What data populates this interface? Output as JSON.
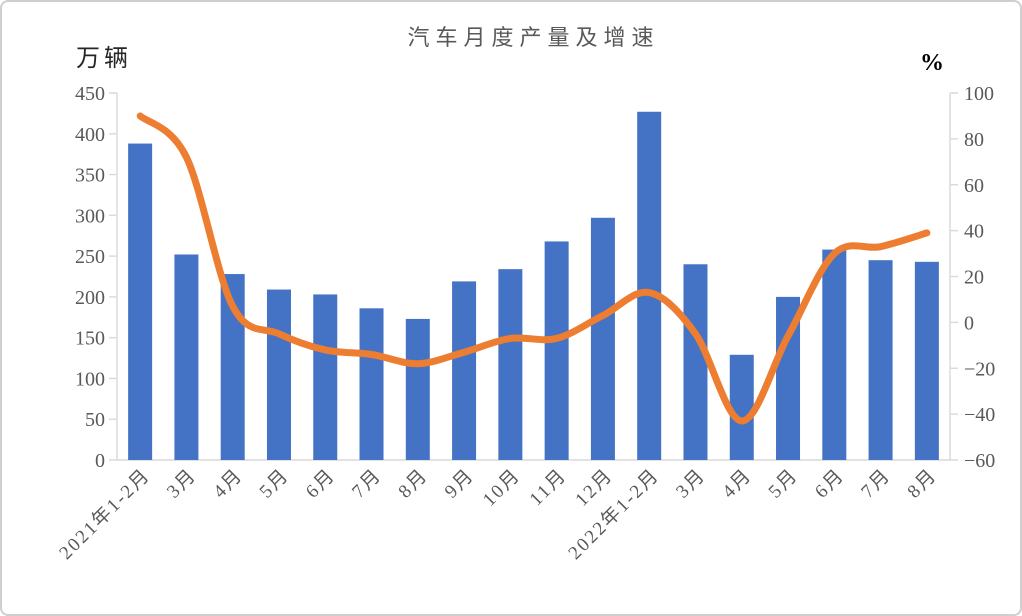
{
  "window": {
    "background": "#ffffff",
    "border_color": "#cfcfcf"
  },
  "chart_data": {
    "type": "bar",
    "subtype": "bar+line combo, dual axis",
    "title": "汽车月度产量及增速",
    "grid": false,
    "legend_position": "none",
    "categories": [
      "2021年1-2月",
      "3月",
      "4月",
      "5月",
      "6月",
      "7月",
      "8月",
      "9月",
      "10月",
      "11月",
      "12月",
      "2022年1-2月",
      "3月",
      "4月",
      "5月",
      "6月",
      "7月",
      "8月"
    ],
    "left_axis": {
      "label": "万辆",
      "min": 0,
      "max": 450,
      "step": 50,
      "tick_labels": [
        "450",
        "400",
        "350",
        "300",
        "250",
        "200",
        "150",
        "100",
        "50",
        "0"
      ]
    },
    "right_axis": {
      "label": "%",
      "min": -60,
      "max": 100,
      "step": 20,
      "tick_labels": [
        "100",
        "80",
        "60",
        "40",
        "20",
        "0",
        "−20",
        "−40",
        "−60"
      ]
    },
    "series": [
      {
        "name": "月度产量",
        "type": "bar",
        "axis": "left",
        "color": "#4472C4",
        "values": [
          388,
          252,
          228,
          209,
          203,
          186,
          173,
          219,
          234,
          268,
          297,
          427,
          240,
          129,
          200,
          258,
          245,
          243
        ]
      },
      {
        "name": "增速",
        "type": "line",
        "axis": "right",
        "color": "#ED7D31",
        "values": [
          90,
          72,
          7,
          -5,
          -12,
          -14,
          -18,
          -13,
          -7,
          -7,
          3,
          13,
          -5,
          -43,
          -6,
          30,
          33,
          39
        ]
      }
    ],
    "colors": {
      "axis_line": "#d9d9d9",
      "tick_text": "#595959",
      "title_text": "#595959"
    }
  }
}
